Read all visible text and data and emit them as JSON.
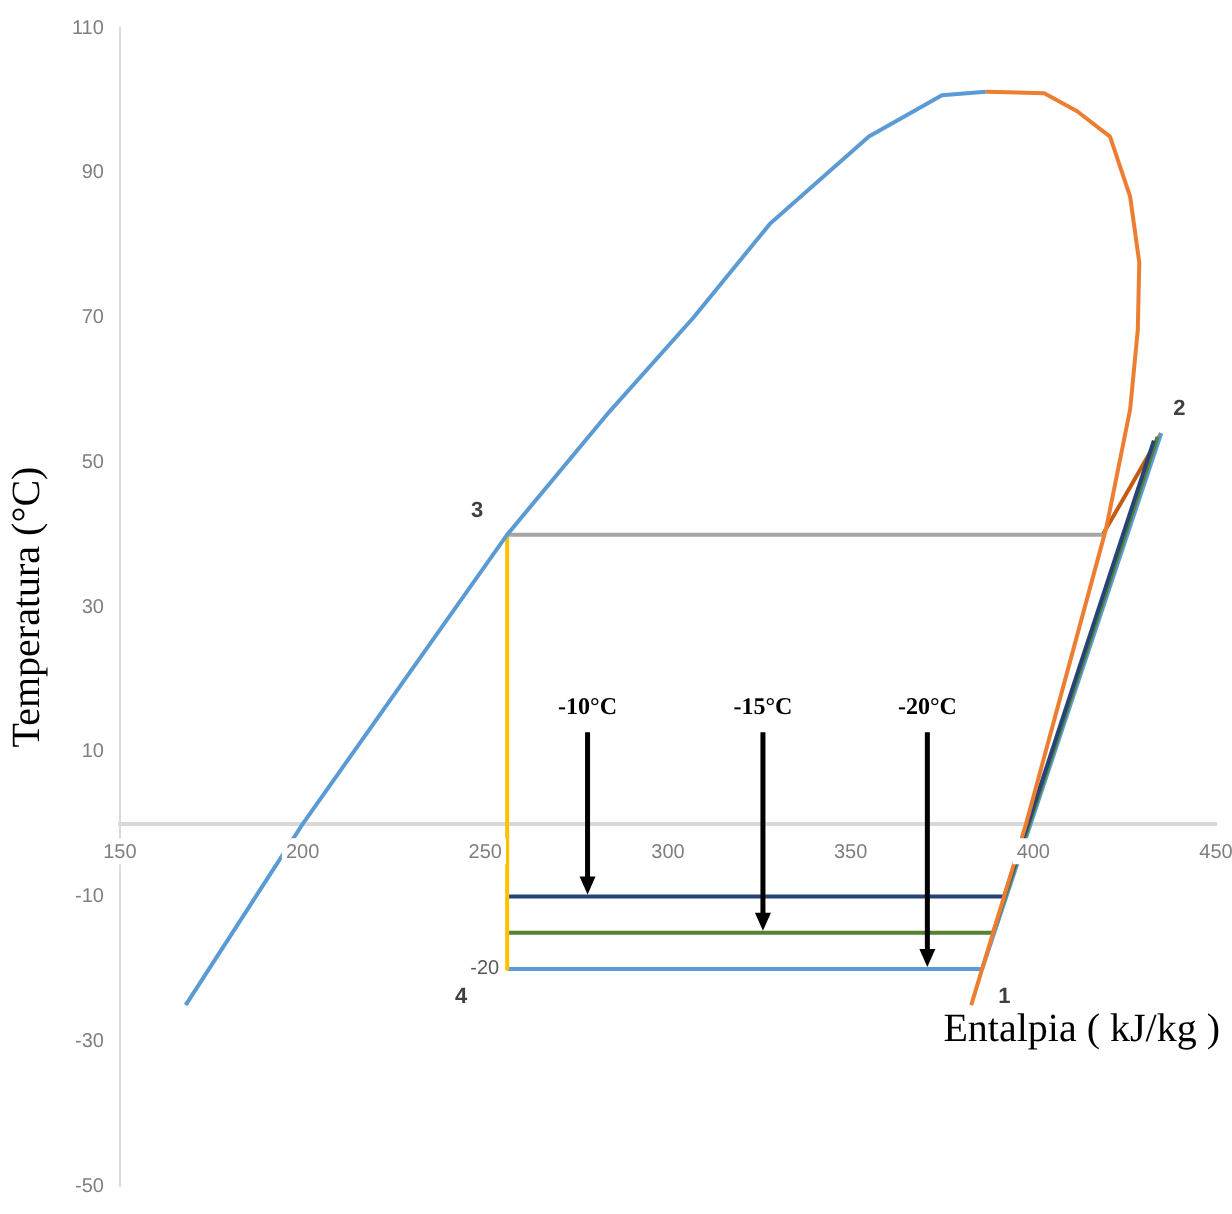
{
  "chart_data": {
    "type": "line",
    "xlabel": "Entalpia ( kJ/kg )",
    "ylabel": "Temperatura (°C)",
    "xlim": [
      150,
      450
    ],
    "xticks": [
      150,
      200,
      250,
      300,
      350,
      400,
      450
    ],
    "ylim": [
      -50,
      110
    ],
    "yticks": [
      -50,
      -30,
      -10,
      10,
      30,
      50,
      70,
      90,
      110
    ],
    "grid": false,
    "legend": false,
    "marker": "none",
    "line_style": "solid",
    "series": [
      {
        "color": "#5b9bd5",
        "x": [
          168,
          200,
          256,
          284,
          307,
          328,
          355,
          375,
          387
        ],
        "values": [
          -25,
          0,
          40,
          57,
          70,
          83,
          95,
          100.7,
          101.2
        ]
      },
      {
        "color": "#ed7d31",
        "x": [
          387,
          403,
          412,
          421,
          426.5,
          429,
          428.6,
          426.5,
          420,
          398,
          383
        ],
        "values": [
          101.2,
          101,
          98.5,
          95,
          86.7,
          77.6,
          68.3,
          57.3,
          41,
          0,
          -25
        ]
      },
      {
        "color": "#a5a5a5",
        "x": [
          256,
          419
        ],
        "values": [
          40,
          40
        ]
      },
      {
        "color": "#ffc000",
        "x": [
          256,
          256
        ],
        "values": [
          40,
          -20
        ]
      },
      {
        "color": "#264478",
        "x": [
          256,
          392
        ],
        "values": [
          -10,
          -10
        ]
      },
      {
        "color": "#548235",
        "x": [
          256,
          389
        ],
        "values": [
          -15,
          -15
        ]
      },
      {
        "color": "#5b9bd5",
        "x": [
          256,
          386
        ],
        "values": [
          -20,
          -20
        ]
      },
      {
        "color": "#264478",
        "x": [
          392,
          433
        ],
        "values": [
          -10,
          53
        ]
      },
      {
        "color": "#548235",
        "x": [
          389,
          434
        ],
        "values": [
          -15,
          53.5
        ]
      },
      {
        "color": "#5b9bd5",
        "x": [
          386,
          435
        ],
        "values": [
          -20,
          54
        ]
      },
      {
        "color": "#c55a11",
        "x": [
          419,
          435
        ],
        "values": [
          40,
          54
        ]
      }
    ],
    "annotations": [
      {
        "text": "-10°C",
        "x": 278,
        "y": -10
      },
      {
        "text": "-15°C",
        "x": 326,
        "y": -15
      },
      {
        "text": "-20°C",
        "x": 371,
        "y": -20
      },
      {
        "text": "1",
        "x": 386,
        "y": -20
      },
      {
        "text": "2",
        "x": 435,
        "y": 54
      },
      {
        "text": "3",
        "x": 256,
        "y": 40
      },
      {
        "text": "4",
        "x": 256,
        "y": -20
      },
      {
        "text": "-20",
        "x": 256,
        "y": -20
      }
    ]
  }
}
